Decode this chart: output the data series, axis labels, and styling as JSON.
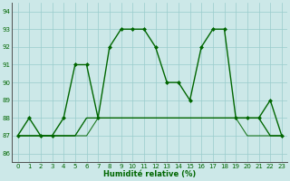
{
  "x": [
    0,
    1,
    2,
    3,
    4,
    5,
    6,
    7,
    8,
    9,
    10,
    11,
    12,
    13,
    14,
    15,
    16,
    17,
    18,
    19,
    20,
    21,
    22,
    23
  ],
  "line_main": [
    87,
    88,
    87,
    87,
    88,
    91,
    91,
    88,
    92,
    93,
    93,
    93,
    92,
    90,
    90,
    89,
    92,
    93,
    93,
    88,
    88,
    88,
    89,
    87
  ],
  "line_flat1": [
    87,
    87,
    87,
    87,
    87,
    87,
    87,
    88,
    88,
    88,
    88,
    88,
    88,
    88,
    88,
    88,
    88,
    88,
    88,
    88,
    87,
    87,
    87,
    87
  ],
  "line_flat2": [
    87,
    87,
    87,
    87,
    87,
    87,
    88,
    88,
    88,
    88,
    88,
    88,
    88,
    88,
    88,
    88,
    88,
    88,
    88,
    88,
    88,
    88,
    87,
    87
  ],
  "line_flat3": [
    87,
    87,
    87,
    87,
    87,
    87,
    88,
    88,
    88,
    88,
    88,
    88,
    88,
    88,
    88,
    88,
    88,
    88,
    88,
    88,
    88,
    88,
    87,
    87
  ],
  "bg_color": "#cce8e8",
  "line_color": "#006600",
  "grid_color": "#99cccc",
  "xlabel": "Humidité relative (%)",
  "xlim": [
    -0.5,
    23.5
  ],
  "ylim": [
    85.5,
    94.5
  ],
  "yticks": [
    86,
    87,
    88,
    89,
    90,
    91,
    92,
    93,
    94
  ],
  "xticks": [
    0,
    1,
    2,
    3,
    4,
    5,
    6,
    7,
    8,
    9,
    10,
    11,
    12,
    13,
    14,
    15,
    16,
    17,
    18,
    19,
    20,
    21,
    22,
    23
  ]
}
